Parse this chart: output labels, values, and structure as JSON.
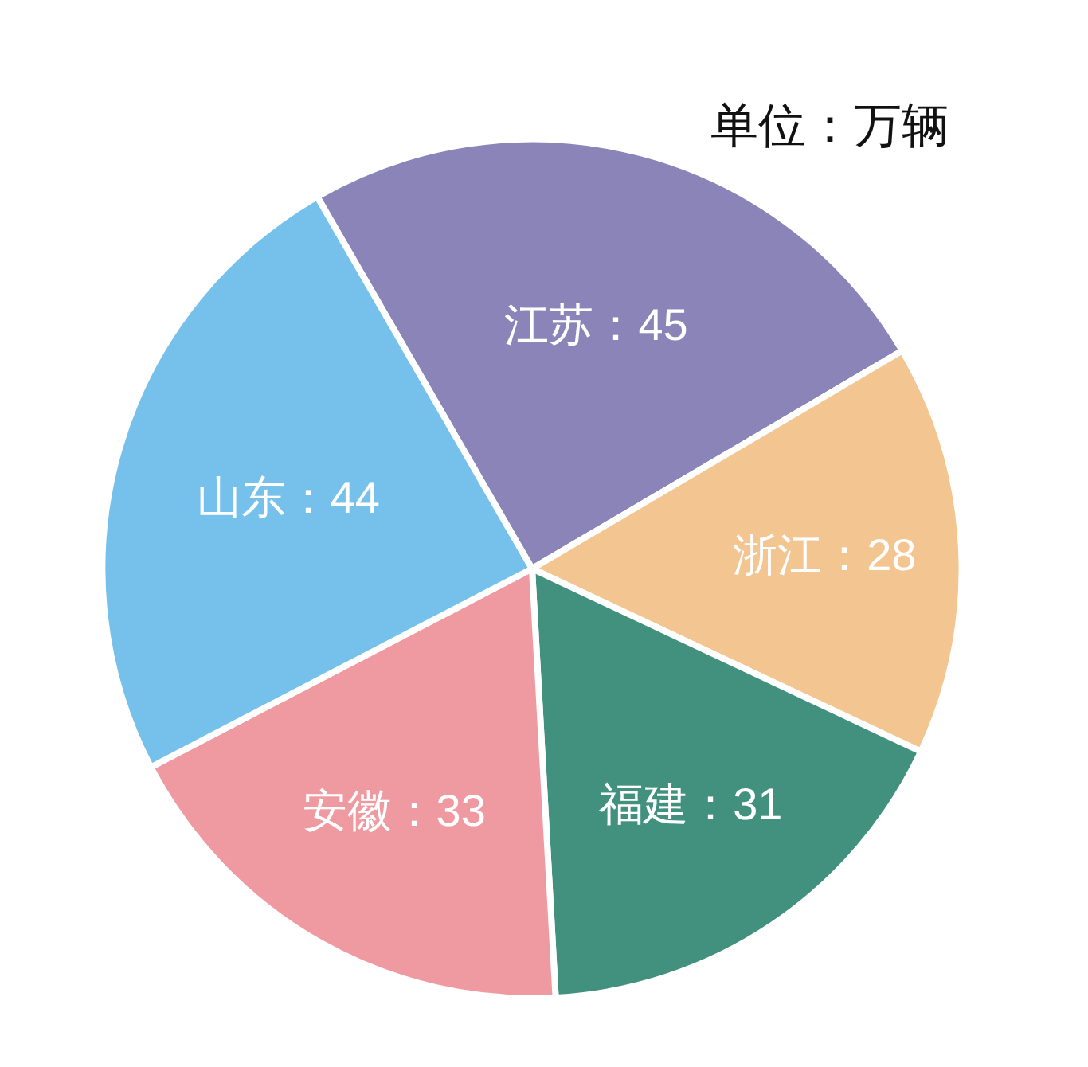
{
  "chart_data": {
    "type": "pie",
    "categories": [
      "江苏",
      "浙江",
      "福建",
      "安徽",
      "山东"
    ],
    "values": [
      45,
      28,
      31,
      33,
      44
    ],
    "colors": [
      "#8a84b8",
      "#f3c591",
      "#42917f",
      "#ef9aa1",
      "#75c1ec"
    ],
    "value_labels": [
      "：45",
      "：28",
      "：31",
      "：33",
      "：44"
    ],
    "annotations": [
      "单位：万辆"
    ],
    "legend": false
  }
}
